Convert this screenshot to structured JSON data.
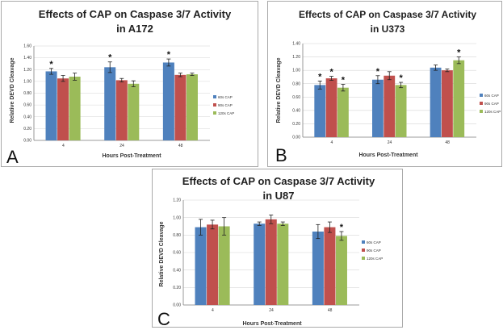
{
  "chart_data": [
    {
      "type": "bar",
      "panel_label": "A",
      "title": "Effects of CAP on Caspase 3/7 Activity",
      "subtitle": "in A172",
      "xlabel": "Hours Post-Treatment",
      "ylabel": "Relative DEVD Cleavage",
      "ylim": [
        0,
        1.6
      ],
      "ytick_labels": [
        "0.00",
        "0.20",
        "0.40",
        "0.60",
        "0.80",
        "1.00",
        "1.20",
        "1.40",
        "1.60"
      ],
      "categories": [
        "4",
        "24",
        "48"
      ],
      "series": [
        {
          "name": "60s CAP",
          "color": "#4f81bd",
          "values": [
            1.17,
            1.24,
            1.32
          ],
          "errors": [
            0.05,
            0.09,
            0.06
          ],
          "significant": [
            true,
            true,
            true
          ]
        },
        {
          "name": "90s CAP",
          "color": "#c0504d",
          "values": [
            1.05,
            1.02,
            1.11
          ],
          "errors": [
            0.05,
            0.03,
            0.03
          ],
          "significant": [
            false,
            false,
            false
          ]
        },
        {
          "name": "120s CAP",
          "color": "#9bbb59",
          "values": [
            1.08,
            0.96,
            1.12
          ],
          "errors": [
            0.06,
            0.05,
            0.02
          ],
          "significant": [
            false,
            false,
            false
          ]
        }
      ],
      "legend": "right"
    },
    {
      "type": "bar",
      "panel_label": "B",
      "title": "Effects of CAP on Caspase 3/7 Activity",
      "subtitle": "in U373",
      "xlabel": "Hours Post-Treatment",
      "ylabel": "Relative DEVD Cleavage",
      "ylim": [
        0,
        1.4
      ],
      "ytick_labels": [
        "0.00",
        "0.20",
        "0.40",
        "0.60",
        "0.80",
        "1.00",
        "1.20",
        "1.40"
      ],
      "categories": [
        "4",
        "24",
        "48"
      ],
      "series": [
        {
          "name": "60s CAP",
          "color": "#4f81bd",
          "values": [
            0.78,
            0.86,
            1.04
          ],
          "errors": [
            0.06,
            0.06,
            0.04
          ],
          "significant": [
            true,
            true,
            false
          ]
        },
        {
          "name": "90s CAP",
          "color": "#c0504d",
          "values": [
            0.88,
            0.92,
            1.0
          ],
          "errors": [
            0.03,
            0.06,
            0.02
          ],
          "significant": [
            true,
            false,
            false
          ]
        },
        {
          "name": "120s CAP",
          "color": "#9bbb59",
          "values": [
            0.74,
            0.78,
            1.15
          ],
          "errors": [
            0.05,
            0.04,
            0.05
          ],
          "significant": [
            true,
            true,
            true
          ]
        }
      ],
      "legend": "right"
    },
    {
      "type": "bar",
      "panel_label": "C",
      "title": "Effects of CAP on Caspase 3/7 Activity",
      "subtitle": "in U87",
      "xlabel": "Hours Post-Treatment",
      "ylabel": "Relative DEVD Cleavage",
      "ylim": [
        0,
        1.2
      ],
      "ytick_labels": [
        "0.00",
        "0.20",
        "0.40",
        "0.60",
        "0.80",
        "1.00",
        "1.20"
      ],
      "categories": [
        "4",
        "24",
        "48"
      ],
      "series": [
        {
          "name": "60s CAP",
          "color": "#4f81bd",
          "values": [
            0.89,
            0.93,
            0.84
          ],
          "errors": [
            0.09,
            0.02,
            0.08
          ],
          "significant": [
            false,
            false,
            false
          ]
        },
        {
          "name": "90s CAP",
          "color": "#c0504d",
          "values": [
            0.92,
            0.98,
            0.89
          ],
          "errors": [
            0.05,
            0.05,
            0.06
          ],
          "significant": [
            false,
            false,
            false
          ]
        },
        {
          "name": "120s CAP",
          "color": "#9bbb59",
          "values": [
            0.9,
            0.93,
            0.79
          ],
          "errors": [
            0.1,
            0.02,
            0.05
          ],
          "significant": [
            false,
            false,
            true
          ]
        }
      ],
      "legend": "right"
    }
  ]
}
